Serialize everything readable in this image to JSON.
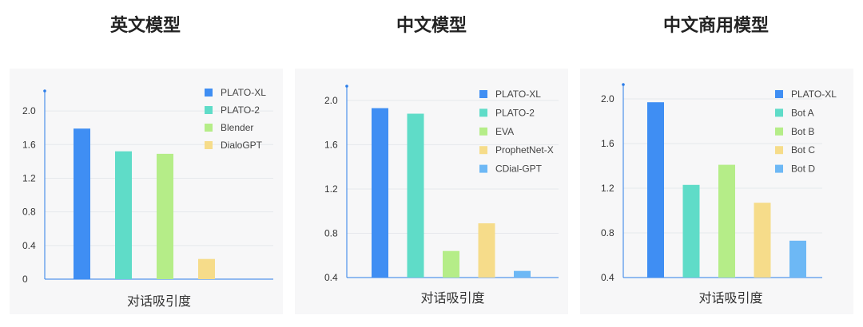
{
  "chart_data": [
    {
      "type": "bar",
      "title": "英文模型",
      "xlabel": "对话吸引度",
      "ylabel": "",
      "ylim": [
        0,
        2.2
      ],
      "yticks": [
        0,
        0.4,
        0.8,
        1.2,
        1.6,
        2.0
      ],
      "ytick_labels": [
        "0",
        "0.4",
        "0.8",
        "1.2",
        "1.6",
        "2.0"
      ],
      "grid": true,
      "legend": "top-right",
      "categories": [
        "PLATO-XL",
        "PLATO-2",
        "Blender",
        "DialoGPT"
      ],
      "values": [
        1.79,
        1.52,
        1.49,
        0.24
      ],
      "colors": [
        "#3f8ef3",
        "#5fdcc8",
        "#b5ed88",
        "#f6dc8a"
      ]
    },
    {
      "type": "bar",
      "title": "中文模型",
      "xlabel": "对话吸引度",
      "ylabel": "",
      "ylim": [
        0.4,
        2.1
      ],
      "yticks": [
        0.4,
        0.8,
        1.2,
        1.6,
        2.0
      ],
      "ytick_labels": [
        "0.4",
        "0.8",
        "1.2",
        "1.6",
        "2.0"
      ],
      "grid": true,
      "legend": "top-right",
      "categories": [
        "PLATO-XL",
        "PLATO-2",
        "EVA",
        "ProphetNet-X",
        "CDial-GPT"
      ],
      "values": [
        1.93,
        1.88,
        0.64,
        0.89,
        0.46
      ],
      "colors": [
        "#3f8ef3",
        "#5fdcc8",
        "#b5ed88",
        "#f6dc8a",
        "#6db8f5"
      ]
    },
    {
      "type": "bar",
      "title": "中文商用模型",
      "xlabel": "对话吸引度",
      "ylabel": "",
      "ylim": [
        0.4,
        2.1
      ],
      "yticks": [
        0.4,
        0.8,
        1.2,
        1.6,
        2.0
      ],
      "ytick_labels": [
        "0.4",
        "0.8",
        "1.2",
        "1.6",
        "2.0"
      ],
      "grid": true,
      "legend": "top-right",
      "categories": [
        "PLATO-XL",
        "Bot A",
        "Bot B",
        "Bot C",
        "Bot D"
      ],
      "values": [
        1.97,
        1.23,
        1.41,
        1.07,
        0.73
      ],
      "colors": [
        "#3f8ef3",
        "#5fdcc8",
        "#b5ed88",
        "#f6dc8a",
        "#6db8f5"
      ]
    }
  ]
}
